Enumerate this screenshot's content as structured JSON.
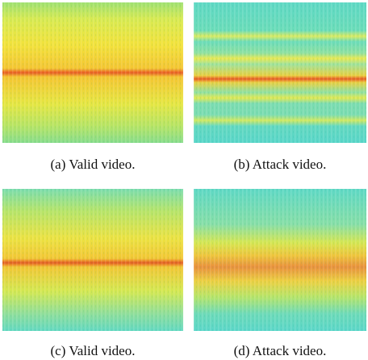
{
  "figure": {
    "panels": [
      {
        "caption": "(a) Valid video."
      },
      {
        "caption": "(b) Attack video."
      },
      {
        "caption": "(c) Valid video."
      },
      {
        "caption": "(d) Attack video."
      }
    ]
  }
}
